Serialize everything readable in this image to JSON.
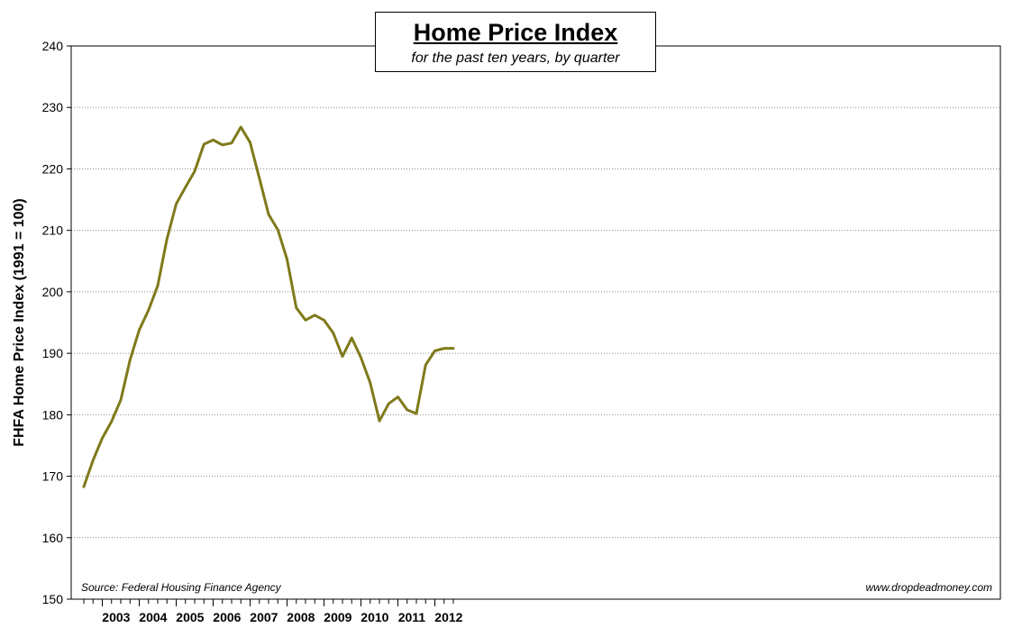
{
  "chart_data": {
    "type": "line",
    "title": "Home Price Index",
    "subtitle": "for the past ten years, by quarter",
    "xlabel": "",
    "ylabel": "FHFA Home Price Index (1991 = 100)",
    "ylim": [
      150,
      240
    ],
    "yticks": [
      150,
      160,
      170,
      180,
      190,
      200,
      210,
      220,
      230,
      240
    ],
    "year_labels": [
      "2003",
      "2004",
      "2005",
      "2006",
      "2007",
      "2008",
      "2009",
      "2010",
      "2011",
      "2012"
    ],
    "x": [
      "2002 Q3",
      "2002 Q4",
      "2003 Q1",
      "2003 Q2",
      "2003 Q3",
      "2003 Q4",
      "2004 Q1",
      "2004 Q2",
      "2004 Q3",
      "2004 Q4",
      "2005 Q1",
      "2005 Q2",
      "2005 Q3",
      "2005 Q4",
      "2006 Q1",
      "2006 Q2",
      "2006 Q3",
      "2006 Q4",
      "2007 Q1",
      "2007 Q2",
      "2007 Q3",
      "2007 Q4",
      "2008 Q1",
      "2008 Q2",
      "2008 Q3",
      "2008 Q4",
      "2009 Q1",
      "2009 Q2",
      "2009 Q3",
      "2009 Q4",
      "2010 Q1",
      "2010 Q2",
      "2010 Q3",
      "2010 Q4",
      "2011 Q1",
      "2011 Q2",
      "2011 Q3",
      "2011 Q4",
      "2012 Q1",
      "2012 Q2",
      "2012 Q3"
    ],
    "series": [
      {
        "name": "",
        "values": [
          168.3,
          172.6,
          176.2,
          178.9,
          182.4,
          188.9,
          193.8,
          197.0,
          201.0,
          208.6,
          214.3,
          217.0,
          219.6,
          224.0,
          224.7,
          223.9,
          224.2,
          226.8,
          224.3,
          218.5,
          212.6,
          210.1,
          205.3,
          197.4,
          195.4,
          196.2,
          195.4,
          193.3,
          189.5,
          192.5,
          189.3,
          185.2,
          179.0,
          181.8,
          182.9,
          180.8,
          180.2,
          188.1,
          190.4,
          190.8,
          190.8
        ]
      }
    ],
    "grid": true,
    "legend": "none",
    "colors": {
      "line": "#7f7a1a",
      "grid": "#8c8c8c",
      "axis": "#000000"
    }
  },
  "annotations": {
    "source": "Source: Federal Housing Finance Agency",
    "credit": "www.dropdeadmoney.com"
  }
}
